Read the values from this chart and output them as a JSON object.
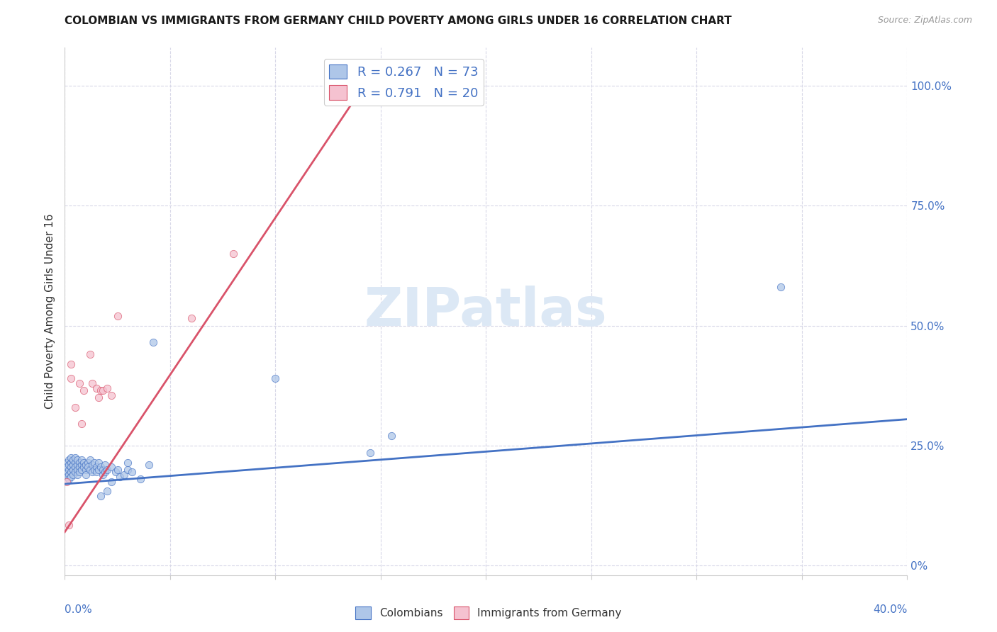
{
  "title": "COLOMBIAN VS IMMIGRANTS FROM GERMANY CHILD POVERTY AMONG GIRLS UNDER 16 CORRELATION CHART",
  "source": "Source: ZipAtlas.com",
  "ylabel": "Child Poverty Among Girls Under 16",
  "ytick_values": [
    0,
    0.25,
    0.5,
    0.75,
    1.0
  ],
  "ytick_right_labels": [
    "0%",
    "25.0%",
    "50.0%",
    "75.0%",
    "100.0%"
  ],
  "xlim": [
    0.0,
    0.4
  ],
  "ylim": [
    -0.02,
    1.08
  ],
  "legend1_label": "R = 0.267   N = 73",
  "legend2_label": "R = 0.791   N = 20",
  "colombians_color": "#aec6e8",
  "germany_color": "#f5c2d0",
  "line_colombians_color": "#4472c4",
  "line_germany_color": "#d9536a",
  "watermark": "ZIPatlas",
  "watermark_color": "#dce8f5",
  "background_color": "#ffffff",
  "grid_color": "#d8d8e8",
  "colombians_scatter": [
    [
      0.001,
      0.215
    ],
    [
      0.001,
      0.195
    ],
    [
      0.001,
      0.205
    ],
    [
      0.001,
      0.185
    ],
    [
      0.002,
      0.22
    ],
    [
      0.002,
      0.2
    ],
    [
      0.002,
      0.19
    ],
    [
      0.002,
      0.18
    ],
    [
      0.002,
      0.21
    ],
    [
      0.003,
      0.215
    ],
    [
      0.003,
      0.205
    ],
    [
      0.003,
      0.195
    ],
    [
      0.003,
      0.225
    ],
    [
      0.003,
      0.185
    ],
    [
      0.004,
      0.21
    ],
    [
      0.004,
      0.2
    ],
    [
      0.004,
      0.22
    ],
    [
      0.004,
      0.19
    ],
    [
      0.005,
      0.215
    ],
    [
      0.005,
      0.205
    ],
    [
      0.005,
      0.195
    ],
    [
      0.005,
      0.225
    ],
    [
      0.006,
      0.21
    ],
    [
      0.006,
      0.2
    ],
    [
      0.006,
      0.22
    ],
    [
      0.006,
      0.19
    ],
    [
      0.007,
      0.215
    ],
    [
      0.007,
      0.205
    ],
    [
      0.007,
      0.195
    ],
    [
      0.008,
      0.21
    ],
    [
      0.008,
      0.2
    ],
    [
      0.008,
      0.22
    ],
    [
      0.009,
      0.215
    ],
    [
      0.009,
      0.205
    ],
    [
      0.01,
      0.2
    ],
    [
      0.01,
      0.19
    ],
    [
      0.01,
      0.21
    ],
    [
      0.011,
      0.215
    ],
    [
      0.011,
      0.205
    ],
    [
      0.012,
      0.2
    ],
    [
      0.012,
      0.22
    ],
    [
      0.013,
      0.21
    ],
    [
      0.013,
      0.195
    ],
    [
      0.014,
      0.2
    ],
    [
      0.014,
      0.215
    ],
    [
      0.015,
      0.205
    ],
    [
      0.015,
      0.195
    ],
    [
      0.016,
      0.2
    ],
    [
      0.016,
      0.215
    ],
    [
      0.017,
      0.205
    ],
    [
      0.017,
      0.145
    ],
    [
      0.018,
      0.2
    ],
    [
      0.018,
      0.19
    ],
    [
      0.019,
      0.21
    ],
    [
      0.019,
      0.195
    ],
    [
      0.02,
      0.2
    ],
    [
      0.02,
      0.155
    ],
    [
      0.022,
      0.205
    ],
    [
      0.022,
      0.175
    ],
    [
      0.024,
      0.195
    ],
    [
      0.025,
      0.2
    ],
    [
      0.026,
      0.185
    ],
    [
      0.028,
      0.19
    ],
    [
      0.03,
      0.2
    ],
    [
      0.03,
      0.215
    ],
    [
      0.032,
      0.195
    ],
    [
      0.036,
      0.18
    ],
    [
      0.04,
      0.21
    ],
    [
      0.042,
      0.465
    ],
    [
      0.1,
      0.39
    ],
    [
      0.145,
      0.235
    ],
    [
      0.155,
      0.27
    ],
    [
      0.34,
      0.58
    ]
  ],
  "germany_scatter": [
    [
      0.001,
      0.175
    ],
    [
      0.002,
      0.085
    ],
    [
      0.003,
      0.39
    ],
    [
      0.003,
      0.42
    ],
    [
      0.005,
      0.33
    ],
    [
      0.007,
      0.38
    ],
    [
      0.008,
      0.295
    ],
    [
      0.009,
      0.365
    ],
    [
      0.012,
      0.44
    ],
    [
      0.013,
      0.38
    ],
    [
      0.015,
      0.37
    ],
    [
      0.016,
      0.35
    ],
    [
      0.017,
      0.365
    ],
    [
      0.018,
      0.365
    ],
    [
      0.02,
      0.37
    ],
    [
      0.022,
      0.355
    ],
    [
      0.025,
      0.52
    ],
    [
      0.06,
      0.515
    ],
    [
      0.08,
      0.65
    ],
    [
      0.13,
      0.975
    ]
  ],
  "colombians_line_x": [
    0.0,
    0.4
  ],
  "colombians_line_y": [
    0.17,
    0.305
  ],
  "germany_line_x": [
    0.0,
    0.145
  ],
  "germany_line_y": [
    0.07,
    1.02
  ],
  "x_ticks": [
    0.0,
    0.05,
    0.1,
    0.15,
    0.2,
    0.25,
    0.3,
    0.35,
    0.4
  ]
}
